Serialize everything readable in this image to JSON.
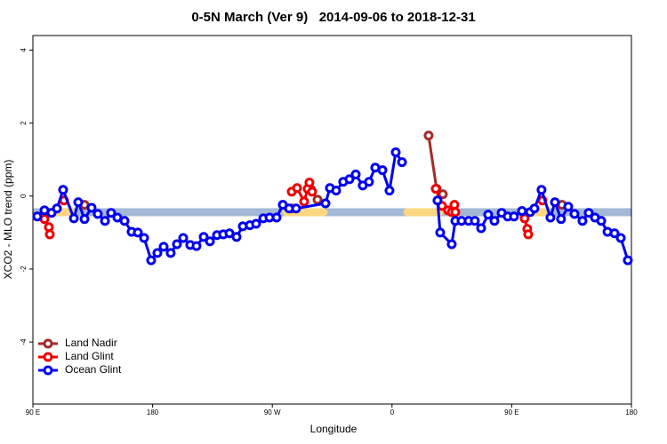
{
  "chart_data": {
    "type": "line",
    "title": "0-5N March (Ver 9)   2014-09-06 to 2018-12-31",
    "x_label": "Longitude",
    "y_label": "XCO2 - MLO trend (ppm)",
    "xlim": [
      90,
      540
    ],
    "ylim": [
      -5.7,
      4.4
    ],
    "xticks": [
      {
        "value": 90,
        "label": "90 E"
      },
      {
        "value": 180,
        "label": "180"
      },
      {
        "value": 270,
        "label": "90 W"
      },
      {
        "value": 360,
        "label": "0"
      },
      {
        "value": 450,
        "label": "90 E"
      },
      {
        "value": 540,
        "label": "180"
      }
    ],
    "yticks": [
      -4,
      -2,
      0,
      2,
      4
    ],
    "legend": "bottom-left",
    "series": [
      {
        "name": "Land Nadir",
        "color": "#a52a2a",
        "x": [
          128.8,
          null,
          284.6,
          null,
          299.3,
          304.0,
          null,
          387.5,
          393.5,
          398.2,
          null,
          487.8
        ],
        "values": [
          -0.24,
          null,
          -0.34,
          null,
          0.17,
          -0.1,
          null,
          1.66,
          0.2,
          0.05,
          null,
          -0.24
        ]
      },
      {
        "name": "Land Glint",
        "color": "#ee0000",
        "x": [
          98.7,
          102.0,
          102.7,
          null,
          113.4,
          null,
          284.6,
          288.6,
          293.9,
          296.6,
          297.9,
          299.9,
          null,
          392.9,
          397.6,
          402.2,
          404.9,
          406.9,
          407.6,
          null,
          459.7,
          461.7,
          462.4,
          null,
          473.1
        ],
        "values": [
          -0.63,
          -0.85,
          -1.05,
          null,
          -0.12,
          null,
          0.12,
          0.22,
          -0.15,
          0.2,
          0.37,
          0.12,
          null,
          0.2,
          -0.27,
          -0.39,
          -0.44,
          -0.24,
          -0.44,
          null,
          -0.61,
          -0.9,
          -1.05,
          null,
          -0.12
        ]
      },
      {
        "name": "Ocean Glint",
        "color": "#0000ee",
        "x": [
          93.3,
          98.7,
          104.0,
          108.1,
          112.7,
          120.8,
          124.1,
          128.8,
          134.1,
          138.8,
          144.2,
          148.8,
          153.5,
          158.9,
          164.2,
          168.9,
          173.6,
          178.9,
          183.6,
          188.3,
          193.6,
          198.3,
          203.0,
          208.3,
          213.0,
          218.4,
          223.1,
          228.4,
          233.1,
          237.8,
          243.1,
          247.8,
          253.1,
          257.8,
          263.2,
          267.9,
          273.2,
          277.9,
          282.6,
          287.9,
          310.0,
          313.3,
          318.0,
          323.3,
          328.0,
          332.7,
          338.0,
          342.7,
          347.4,
          352.8,
          358.1,
          362.8,
          367.5,
          null,
          394.2,
          396.2,
          404.9,
          407.6,
          412.3,
          417.6,
          422.3,
          427.0,
          432.3,
          437.0,
          442.4,
          447.0,
          451.7,
          457.7,
          463.8,
          467.1,
          472.4,
          479.1,
          482.5,
          487.1,
          492.5,
          497.2,
          503.2,
          507.9,
          512.6,
          517.3,
          522.0,
          527.3,
          532.0,
          537.3
        ],
        "values": [
          -0.56,
          -0.39,
          -0.46,
          -0.34,
          0.17,
          -0.61,
          -0.17,
          -0.63,
          -0.32,
          -0.49,
          -0.68,
          -0.46,
          -0.59,
          -0.68,
          -0.98,
          -1.0,
          -1.15,
          -1.76,
          -1.56,
          -1.39,
          -1.56,
          -1.32,
          -1.15,
          -1.34,
          -1.37,
          -1.12,
          -1.24,
          -1.07,
          -1.05,
          -1.02,
          -1.12,
          -0.83,
          -0.8,
          -0.76,
          -0.61,
          -0.59,
          -0.59,
          -0.24,
          -0.34,
          -0.34,
          -0.2,
          0.22,
          0.15,
          0.39,
          0.46,
          0.59,
          0.29,
          0.39,
          0.78,
          0.71,
          0.15,
          1.2,
          0.93,
          null,
          -0.12,
          -1.0,
          -1.32,
          -0.68,
          -0.68,
          -0.68,
          -0.68,
          -0.88,
          -0.51,
          -0.68,
          -0.46,
          -0.56,
          -0.56,
          -0.41,
          -0.44,
          -0.34,
          0.17,
          -0.59,
          -0.17,
          -0.63,
          -0.29,
          -0.49,
          -0.68,
          -0.46,
          -0.59,
          -0.68,
          -0.98,
          -1.02,
          -1.15,
          -1.76
        ]
      }
    ]
  }
}
